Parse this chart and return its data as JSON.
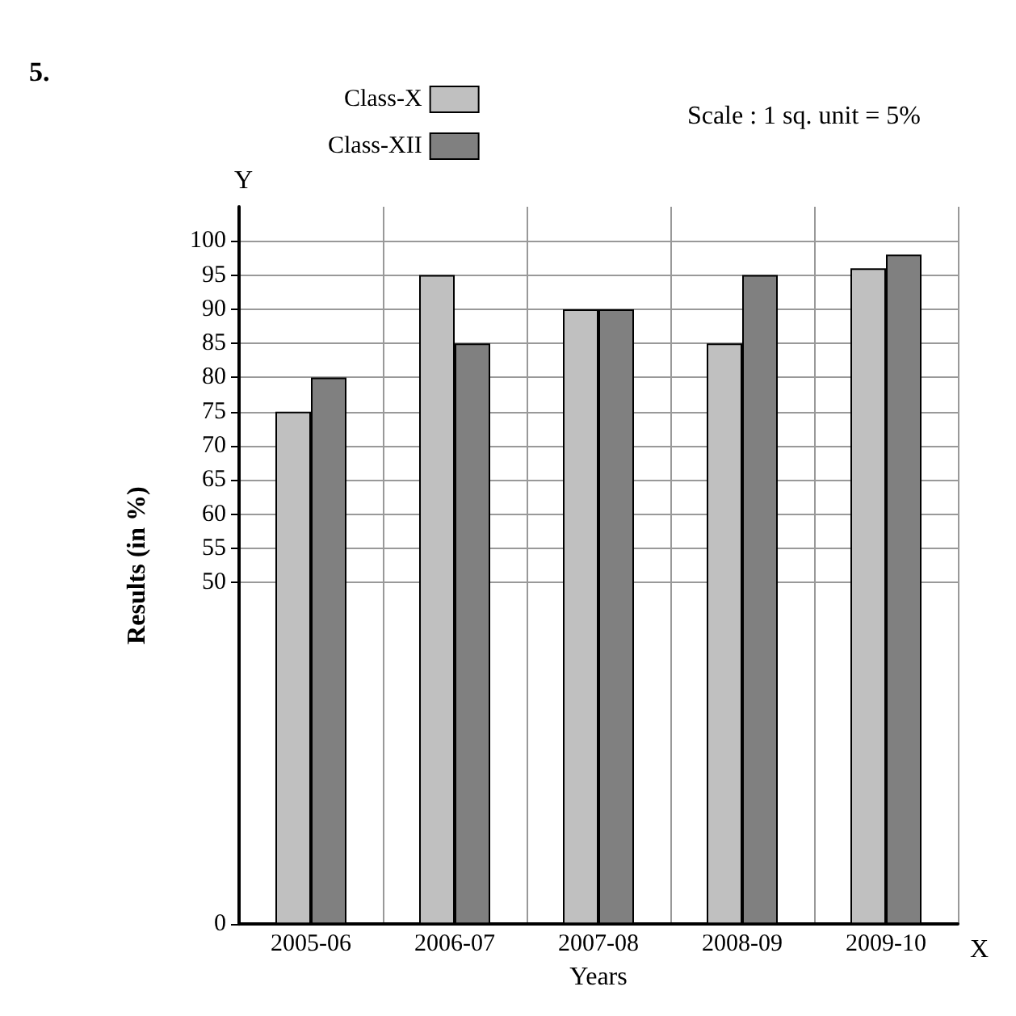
{
  "chart_data": {
    "type": "bar",
    "xlabel": "Years",
    "ylabel": "Results (in %)",
    "categories": [
      "2005-06",
      "2006-07",
      "2007-08",
      "2008-09",
      "2009-10"
    ],
    "series": [
      {
        "name": "Class-X",
        "color": "#c0c0c0",
        "values": [
          75,
          95,
          90,
          85,
          96
        ]
      },
      {
        "name": "Class-XII",
        "color": "#808080",
        "values": [
          80,
          85,
          90,
          95,
          98
        ]
      }
    ],
    "ylim": [
      0,
      105
    ],
    "yticks": [
      0,
      50,
      55,
      60,
      65,
      70,
      75,
      80,
      85,
      90,
      95,
      100
    ],
    "grid": true,
    "legend": "top left",
    "annotations": [
      "5.",
      "Scale : 1 sq. unit = 5%",
      "X",
      "Y"
    ]
  }
}
